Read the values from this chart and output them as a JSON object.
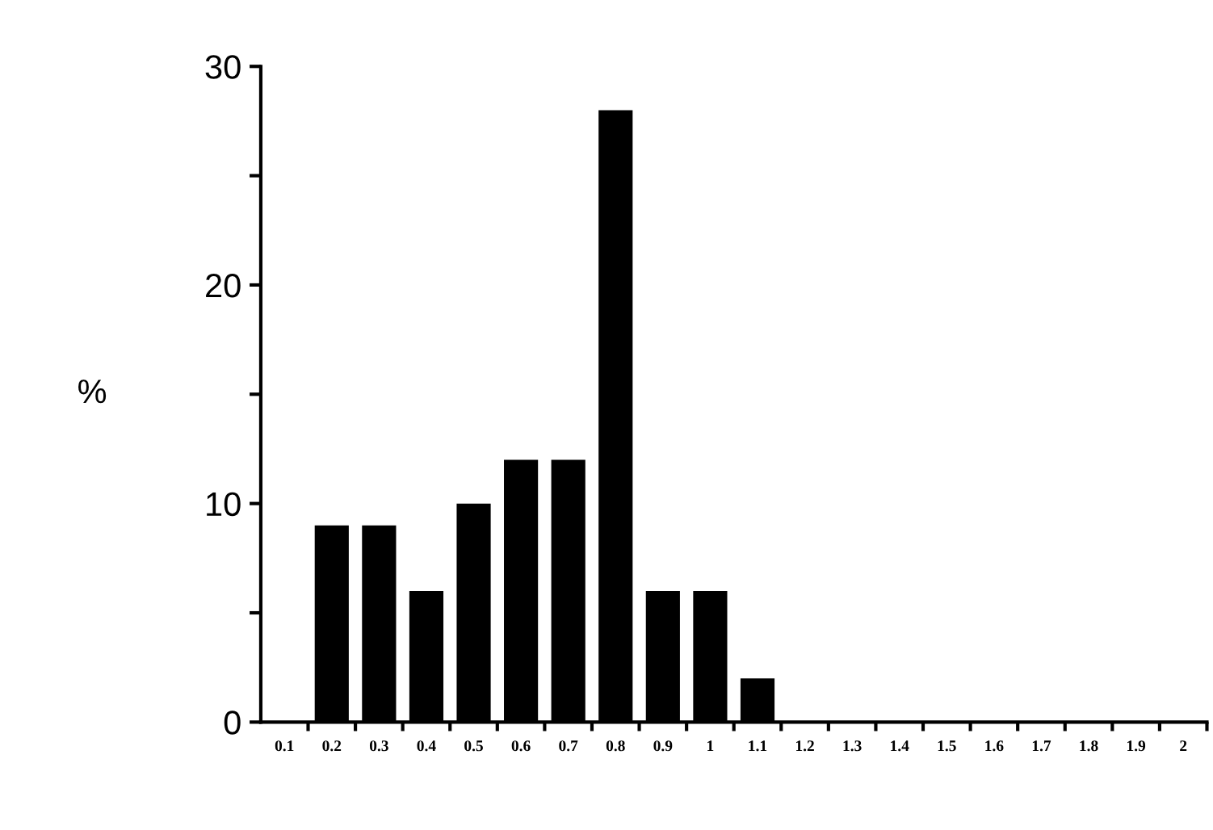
{
  "chart_data": {
    "type": "bar",
    "ylabel": "%",
    "categories": [
      "0.1",
      "0.2",
      "0.3",
      "0.4",
      "0.5",
      "0.6",
      "0.7",
      "0.8",
      "0.9",
      "1",
      "1.1",
      "1.2",
      "1.3",
      "1.4",
      "1.5",
      "1.6",
      "1.7",
      "1.8",
      "1.9",
      "2"
    ],
    "values": [
      0,
      9,
      9,
      6,
      10,
      12,
      12,
      28,
      6,
      6,
      2,
      0,
      0,
      0,
      0,
      0,
      0,
      0,
      0,
      0
    ],
    "color": "#000000",
    "ylim": [
      0,
      30
    ],
    "yticks": [
      0,
      {
        "value": 5,
        "label": null
      },
      10,
      {
        "value": 15,
        "label": null
      },
      20,
      {
        "value": 25,
        "label": null
      },
      30
    ],
    "grid": false
  }
}
